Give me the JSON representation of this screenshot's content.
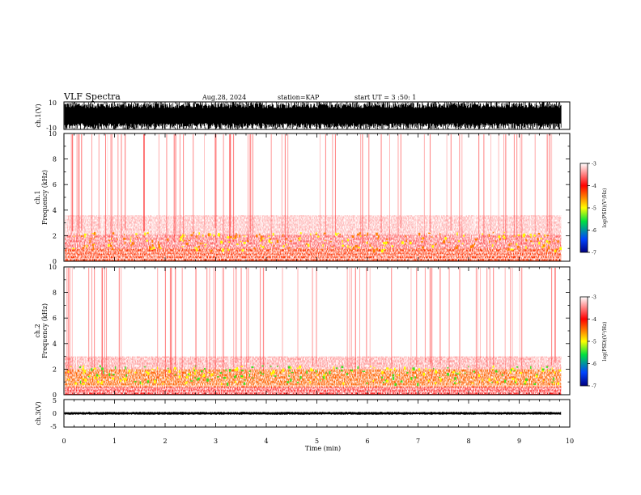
{
  "header": {
    "title": "VLF Spectra",
    "date": "Aug.28, 2024",
    "station": "station=KAP",
    "start": "start UT = 3 :50: 1"
  },
  "chart_data": [
    {
      "type": "line",
      "panel": "waveform-ch1",
      "ylabel": "ch.1(V)",
      "ylim": [
        -10,
        10
      ],
      "y_ticks": [
        "10",
        "-10"
      ],
      "x_ticks": [
        "0",
        "1",
        "2",
        "3",
        "4",
        "5",
        "6",
        "7",
        "8",
        "9",
        "10"
      ],
      "xlim": [
        0,
        10
      ],
      "data_extent_min": 9.83,
      "description_level": "dense oscillation between about -10 and 10 V (saturated)"
    },
    {
      "type": "heatmap",
      "panel": "spectrogram-ch1",
      "ylabel_channel": "ch.1",
      "ylabel": "Frequency (kHz)",
      "ylim": [
        0,
        10
      ],
      "y_ticks": [
        "0",
        "2",
        "4",
        "6",
        "8",
        "10"
      ],
      "xlim": [
        0,
        10
      ],
      "data_extent_min": 9.83,
      "colorbar": {
        "label": "log(PSD)(V²/Hz)",
        "range": [
          -7,
          -3
        ],
        "ticks": [
          "-3",
          "-4",
          "-5",
          "-6",
          "-7"
        ],
        "colors": [
          "#000080",
          "#0044ff",
          "#00e040",
          "#ffff00",
          "#ff8000",
          "#ff0000",
          "#ffffff"
        ]
      },
      "bands": [
        {
          "f_low": 0.0,
          "f_high": 1.0,
          "level": -4.2
        },
        {
          "f_low": 1.0,
          "f_high": 2.1,
          "level": -3.6
        },
        {
          "f_low": 2.1,
          "f_high": 3.6,
          "level": -3.3
        },
        {
          "f_low": 3.6,
          "f_high": 10.0,
          "level": -3.0
        }
      ]
    },
    {
      "type": "heatmap",
      "panel": "spectrogram-ch2",
      "ylabel_channel": "ch.2",
      "ylabel": "Frequency (kHz)",
      "ylim": [
        0,
        10
      ],
      "y_ticks": [
        "0",
        "2",
        "4",
        "6",
        "8",
        "10"
      ],
      "xlim": [
        0,
        10
      ],
      "data_extent_min": 9.83,
      "colorbar": {
        "label": "log(PSD)(V²/Hz)",
        "range": [
          -7,
          -3
        ],
        "ticks": [
          "-3",
          "-4",
          "-5",
          "-6",
          "-7"
        ],
        "colors": [
          "#000080",
          "#0044ff",
          "#00e040",
          "#ffff00",
          "#ff8000",
          "#ff0000",
          "#ffffff"
        ]
      },
      "bands": [
        {
          "f_low": 0.0,
          "f_high": 0.6,
          "level": -3.9
        },
        {
          "f_low": 0.6,
          "f_high": 2.0,
          "level": -4.4
        },
        {
          "f_low": 2.0,
          "f_high": 3.0,
          "level": -3.4
        },
        {
          "f_low": 3.0,
          "f_high": 10.0,
          "level": -3.0
        }
      ]
    },
    {
      "type": "line",
      "panel": "waveform-ch3",
      "ylabel": "ch.3(V)",
      "ylim": [
        -5,
        5
      ],
      "y_ticks": [
        "5",
        "0",
        "-5"
      ],
      "xlim": [
        0,
        10
      ],
      "data_extent_min": 9.83,
      "description_level": "narrow band around 0 V, about -0.5 to 0.5 V",
      "xlabel": "Time (min)",
      "x_ticks": [
        "0",
        "1",
        "2",
        "3",
        "4",
        "5",
        "6",
        "7",
        "8",
        "9",
        "10"
      ]
    }
  ]
}
